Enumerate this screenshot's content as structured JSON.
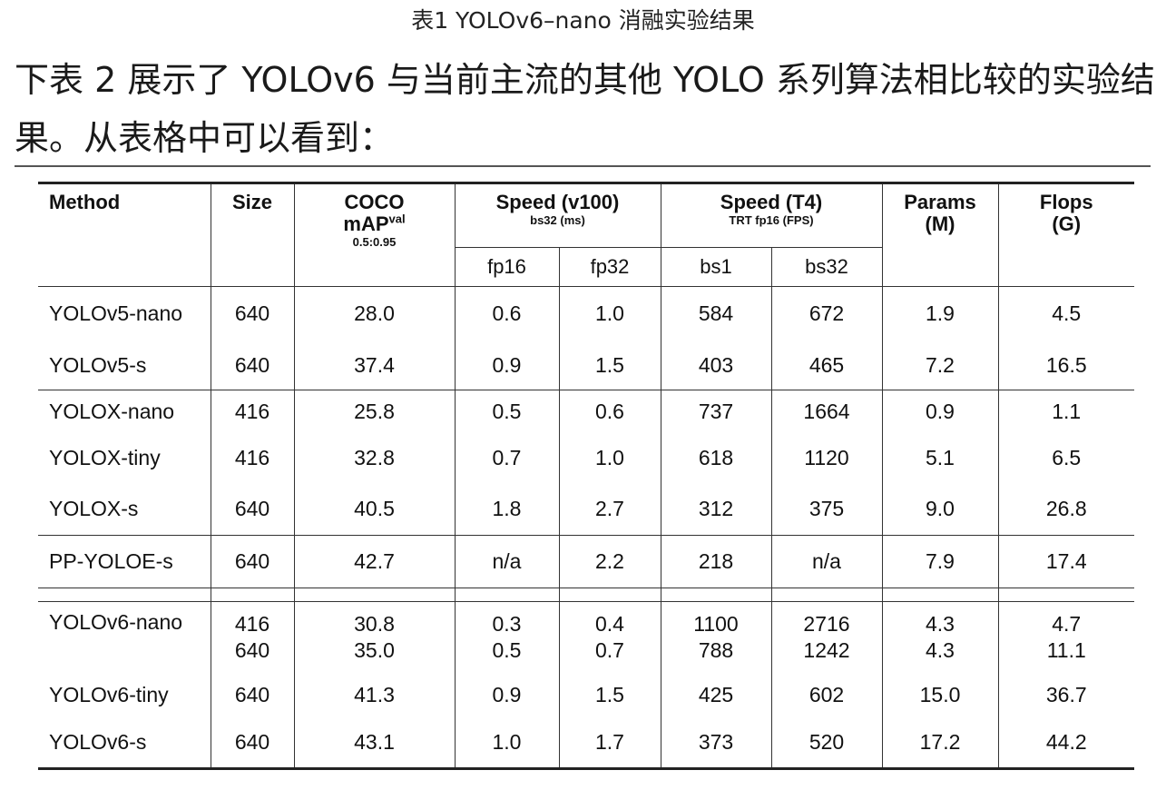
{
  "caption": "表1 YOLOv6–nano 消融实验结果",
  "paragraph": "下表 2 展示了 YOLOv6 与当前主流的其他 YOLO 系列算法相比较的实验结果。从表格中可以看到：",
  "table": {
    "head": {
      "method": "Method",
      "size": "Size",
      "coco_line1": "COCO",
      "coco_line2": "mAP",
      "coco_sup": "val",
      "coco_sub": "0.5:0.95",
      "speed_v100": "Speed (v100)",
      "speed_v100_sub": "bs32 (ms)",
      "speed_t4": "Speed (T4)",
      "speed_t4_sub": "TRT fp16 (FPS)",
      "params_line1": "Params",
      "params_line2": "(M)",
      "flops_line1": "Flops",
      "flops_line2": "(G)",
      "fp16": "fp16",
      "fp32": "fp32",
      "bs1": "bs1",
      "bs32": "bs32"
    },
    "groups": [
      [
        {
          "method": "YOLOv5-nano",
          "size": "640",
          "map": "28.0",
          "fp16": "0.6",
          "fp32": "1.0",
          "bs1": "584",
          "bs32": "672",
          "params": "1.9",
          "flops": "4.5"
        },
        {
          "method": "YOLOv5-s",
          "size": "640",
          "map": "37.4",
          "fp16": "0.9",
          "fp32": "1.5",
          "bs1": "403",
          "bs32": "465",
          "params": "7.2",
          "flops": "16.5"
        }
      ],
      [
        {
          "method": "YOLOX-nano",
          "size": "416",
          "map": "25.8",
          "fp16": "0.5",
          "fp32": "0.6",
          "bs1": "737",
          "bs32": "1664",
          "params": "0.9",
          "flops": "1.1"
        },
        {
          "method": "YOLOX-tiny",
          "size": "416",
          "map": "32.8",
          "fp16": "0.7",
          "fp32": "1.0",
          "bs1": "618",
          "bs32": "1120",
          "params": "5.1",
          "flops": "6.5"
        },
        {
          "method": "YOLOX-s",
          "size": "640",
          "map": "40.5",
          "fp16": "1.8",
          "fp32": "2.7",
          "bs1": "312",
          "bs32": "375",
          "params": "9.0",
          "flops": "26.8"
        }
      ],
      [
        {
          "method": "PP-YOLOE-s",
          "size": "640",
          "map": "42.7",
          "fp16": "n/a",
          "fp32": "2.2",
          "bs1": "218",
          "bs32": "n/a",
          "params": "7.9",
          "flops": "17.4"
        }
      ]
    ],
    "yolov6": {
      "nano": {
        "method": "YOLOv6-nano",
        "size": [
          "416",
          "640"
        ],
        "map": [
          "30.8",
          "35.0"
        ],
        "fp16": [
          "0.3",
          "0.5"
        ],
        "fp32": [
          "0.4",
          "0.7"
        ],
        "bs1": [
          "1100",
          "788"
        ],
        "bs32": [
          "2716",
          "1242"
        ],
        "params": [
          "4.3",
          "4.3"
        ],
        "flops": [
          "4.7",
          "11.1"
        ]
      },
      "tiny": {
        "method": "YOLOv6-tiny",
        "size": "640",
        "map": "41.3",
        "fp16": "0.9",
        "fp32": "1.5",
        "bs1": "425",
        "bs32": "602",
        "params": "15.0",
        "flops": "36.7"
      },
      "s": {
        "method": "YOLOv6-s",
        "size": "640",
        "map": "43.1",
        "fp16": "1.0",
        "fp32": "1.7",
        "bs1": "373",
        "bs32": "520",
        "params": "17.2",
        "flops": "44.2"
      }
    }
  }
}
